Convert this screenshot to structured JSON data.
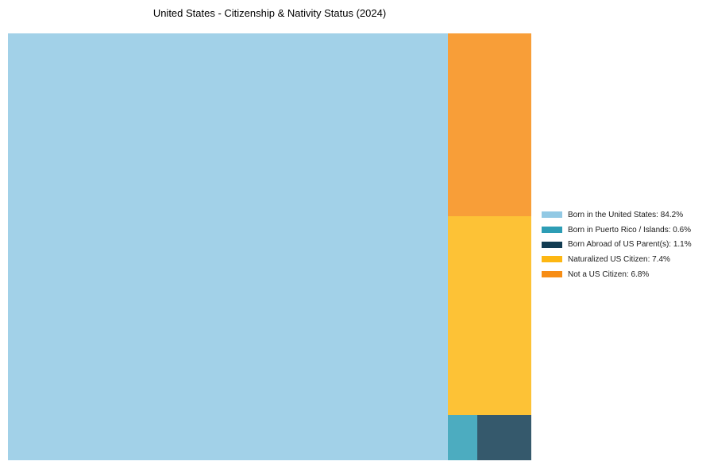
{
  "page": {
    "background": "#ffffff"
  },
  "chart_data": {
    "type": "treemap",
    "title": "United States - Citizenship & Nativity Status (2024)",
    "legend_position": "right",
    "grid": false,
    "tile_opacity": 0.85,
    "items": [
      {
        "label": "Born in the United States",
        "value": 84.2,
        "color": "#92c9e4"
      },
      {
        "label": "Born in Puerto Rico / Islands",
        "value": 0.6,
        "color": "#2d9db5"
      },
      {
        "label": "Born Abroad of US Parent(s)",
        "value": 1.1,
        "color": "#123c52"
      },
      {
        "label": "Naturalized US Citizen",
        "value": 7.4,
        "color": "#fdb713"
      },
      {
        "label": "Not a US Citizen",
        "value": 6.8,
        "color": "#f78d15"
      }
    ]
  }
}
